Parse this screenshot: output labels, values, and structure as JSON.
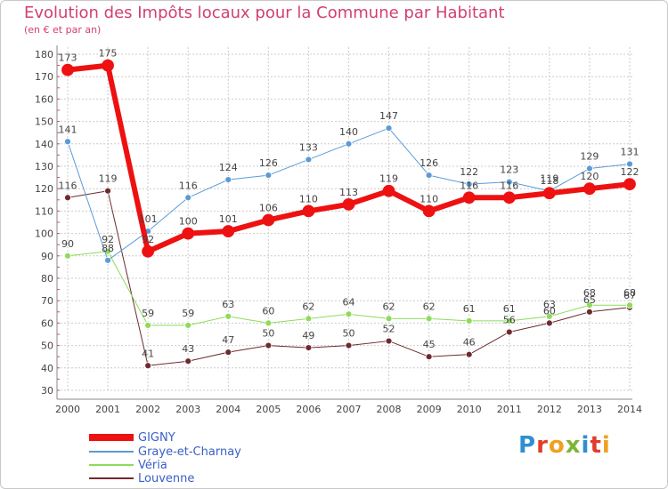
{
  "title": "Evolution des Impôts locaux pour la Commune par Habitant",
  "subtitle": "(en € et par an)",
  "logo_text": "Proxiti",
  "colors": {
    "title": "#d2406e",
    "grid": "#cccccc",
    "axis": "#888888",
    "label": "#444444",
    "logo": [
      "#2f8fd0",
      "#e23d2c",
      "#f0a020",
      "#7cb636",
      "#2f8fd0",
      "#e23d2c",
      "#f0a020"
    ]
  },
  "chart_data": {
    "type": "line",
    "title": "Evolution des Impôts locaux pour la Commune par Habitant",
    "subtitle": "(en € et par an)",
    "xlabel": "",
    "ylabel": "",
    "ylim": [
      30,
      180
    ],
    "yticks": [
      30,
      40,
      50,
      60,
      70,
      80,
      90,
      100,
      110,
      120,
      130,
      140,
      150,
      160,
      170,
      180
    ],
    "grid": true,
    "legend": "bottom-left",
    "categories": [
      "2000",
      "2001",
      "2002",
      "2003",
      "2004",
      "2005",
      "2006",
      "2007",
      "2008",
      "2009",
      "2010",
      "2011",
      "2012",
      "2013",
      "2014"
    ],
    "series": [
      {
        "name": "Louvenne",
        "color": "#6e2b2f",
        "width": 1,
        "marker": 3.5,
        "values": [
          116,
          119,
          41,
          43,
          47,
          50,
          49,
          50,
          52,
          45,
          46,
          56,
          60,
          65,
          67
        ]
      },
      {
        "name": "Véria",
        "color": "#8edb5a",
        "width": 1,
        "marker": 3.5,
        "values": [
          90,
          92,
          59,
          59,
          63,
          60,
          62,
          64,
          62,
          62,
          61,
          61,
          63,
          68,
          68
        ]
      },
      {
        "name": "Graye-et-Charnay",
        "color": "#5b9bd5",
        "width": 1,
        "marker": 3.5,
        "values": [
          141,
          88,
          101,
          116,
          124,
          126,
          133,
          140,
          147,
          126,
          122,
          123,
          119,
          129,
          131
        ]
      },
      {
        "name": "GIGNY",
        "color": "#ee1111",
        "width": 6,
        "marker": 6.5,
        "values": [
          173,
          175,
          92,
          100,
          101,
          106,
          110,
          113,
          119,
          110,
          116,
          116,
          118,
          120,
          122
        ]
      }
    ]
  }
}
